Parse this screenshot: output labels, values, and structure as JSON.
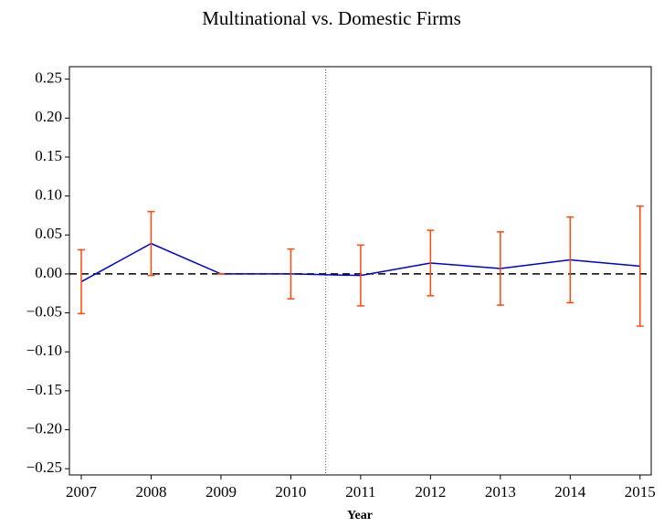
{
  "chart_data": {
    "type": "line",
    "title": "Multinational vs. Domestic Firms",
    "xlabel": "Year",
    "x": [
      2007,
      2008,
      2009,
      2010,
      2011,
      2012,
      2013,
      2014,
      2015
    ],
    "series": [
      {
        "color": "#0000cc",
        "error_color": "#ff4a10",
        "values": [
          -0.01,
          0.039,
          0.0,
          0.0,
          -0.002,
          0.014,
          0.007,
          0.018,
          0.01
        ],
        "errors": [
          0.041,
          0.041,
          0.0,
          0.032,
          0.039,
          0.042,
          0.047,
          0.055,
          0.077
        ]
      }
    ],
    "xlim": [
      2006.83,
      2015.16
    ],
    "xticks": [
      2007,
      2008,
      2009,
      2010,
      2011,
      2012,
      2013,
      2014,
      2015
    ],
    "ylim": [
      -0.258,
      0.266
    ],
    "yticks": [
      {
        "value": 0.25,
        "label": "0.25"
      },
      {
        "value": 0.2,
        "label": "0.20"
      },
      {
        "value": 0.15,
        "label": "0.15"
      },
      {
        "value": 0.1,
        "label": "0.10"
      },
      {
        "value": 0.05,
        "label": "0.05"
      },
      {
        "value": 0,
        "label": "0.00"
      },
      {
        "value": -0.05,
        "label": "−0.05"
      },
      {
        "value": -0.1,
        "label": "−0.10"
      },
      {
        "value": -0.15,
        "label": "−0.15"
      },
      {
        "value": -0.2,
        "label": "−0.20"
      },
      {
        "value": -0.25,
        "label": "−0.25"
      }
    ],
    "hline": 0,
    "vline": 2010.5
  }
}
